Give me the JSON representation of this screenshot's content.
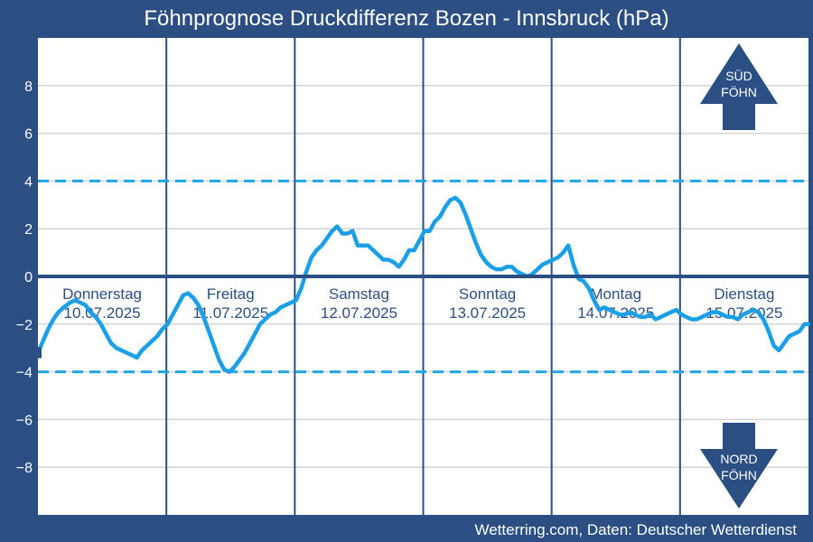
{
  "page": {
    "title": "Föhnprognose Druckdifferenz Bozen - Innsbruck (hPa)",
    "footer": "Wetterring.com, Daten: Deutscher Wetterdienst"
  },
  "chart_data": {
    "type": "line",
    "title": "Föhnprognose Druckdifferenz Bozen - Innsbruck (hPa)",
    "xlabel": "",
    "ylabel": "",
    "ylim": [
      -10,
      10
    ],
    "xlim": [
      0,
      6
    ],
    "x_unit": "days since 10.07.2025 00:00",
    "yticks": [
      8,
      6,
      4,
      2,
      0,
      -2,
      -4,
      -6,
      -8
    ],
    "grid": true,
    "colors": {
      "plot_background": "#ffffff",
      "frame": "#2b4f82",
      "line": "#1b9fe6",
      "threshold": "#1fa6e8",
      "zero_line": "#2b4f82",
      "day_divider": "#2b4f82",
      "arrow": "#2b4f82",
      "grid": "#d4d4d4"
    },
    "thresholds": [
      4,
      -4
    ],
    "days": [
      {
        "weekday": "Donnerstag",
        "date": "10.07.2025"
      },
      {
        "weekday": "Freitag",
        "date": "11.07.2025"
      },
      {
        "weekday": "Samstag",
        "date": "12.07.2025"
      },
      {
        "weekday": "Sonntag",
        "date": "13.07.2025"
      },
      {
        "weekday": "Montag",
        "date": "14.07.2025"
      },
      {
        "weekday": "Dienstag",
        "date": "15.07.2025"
      }
    ],
    "annotations": {
      "south": [
        "SÜD",
        "FÖHN"
      ],
      "north": [
        "NORD",
        "FÖHN"
      ]
    },
    "series": [
      {
        "x": [
          0,
          0.04,
          0.08,
          0.12,
          0.16,
          0.2,
          0.25,
          0.29,
          0.33,
          0.37,
          0.41,
          0.45,
          0.49,
          0.53,
          0.57,
          0.61,
          0.65,
          0.69,
          0.73,
          0.77,
          0.81,
          0.85,
          0.89,
          0.93,
          0.97,
          1.01,
          1.05,
          1.09,
          1.13,
          1.17,
          1.21,
          1.25,
          1.29,
          1.33,
          1.37,
          1.41,
          1.45,
          1.49,
          1.53,
          1.57,
          1.61,
          1.65,
          1.69,
          1.73,
          1.77,
          1.81,
          1.85,
          1.89,
          1.93,
          1.97,
          2.01,
          2.05,
          2.09,
          2.13,
          2.17,
          2.21,
          2.25,
          2.29,
          2.33,
          2.37,
          2.41,
          2.45,
          2.49,
          2.53,
          2.57,
          2.61,
          2.65,
          2.69,
          2.73,
          2.77,
          2.81,
          2.85,
          2.89,
          2.93,
          2.97,
          3.01,
          3.05,
          3.09,
          3.13,
          3.17,
          3.21,
          3.25,
          3.29,
          3.33,
          3.37,
          3.41,
          3.45,
          3.49,
          3.53,
          3.57,
          3.61,
          3.65,
          3.69,
          3.73,
          3.77,
          3.81,
          3.85,
          3.89,
          3.93,
          3.97,
          4.01,
          4.05,
          4.09,
          4.13,
          4.17,
          4.21,
          4.25,
          4.29,
          4.33,
          4.37,
          4.41,
          4.45,
          4.49,
          4.53,
          4.57,
          4.61,
          4.65,
          4.69,
          4.73,
          4.77,
          4.81,
          4.85,
          4.89,
          4.93,
          4.97,
          5.01,
          5.05,
          5.09,
          5.13,
          5.17,
          5.21,
          5.25,
          5.29,
          5.33,
          5.37,
          5.41,
          5.45,
          5.49,
          5.53,
          5.57,
          5.61,
          5.65,
          5.69,
          5.73,
          5.77,
          5.81,
          5.85,
          5.89,
          5.93,
          5.97,
          6.0
        ],
        "values": [
          -3.2,
          -2.7,
          -2.2,
          -1.8,
          -1.5,
          -1.3,
          -1.1,
          -1.0,
          -1.1,
          -1.2,
          -1.5,
          -1.7,
          -2.0,
          -2.4,
          -2.8,
          -3.0,
          -3.1,
          -3.2,
          -3.3,
          -3.4,
          -3.1,
          -2.9,
          -2.7,
          -2.5,
          -2.2,
          -2.0,
          -1.6,
          -1.2,
          -0.8,
          -0.7,
          -0.9,
          -1.2,
          -1.7,
          -2.3,
          -2.9,
          -3.5,
          -3.9,
          -4.0,
          -3.8,
          -3.5,
          -3.2,
          -2.8,
          -2.4,
          -2.0,
          -1.8,
          -1.6,
          -1.5,
          -1.3,
          -1.2,
          -1.1,
          -1.0,
          -0.5,
          0.2,
          0.8,
          1.1,
          1.3,
          1.6,
          1.9,
          2.1,
          1.8,
          1.8,
          1.9,
          1.3,
          1.3,
          1.3,
          1.1,
          0.9,
          0.7,
          0.7,
          0.6,
          0.4,
          0.7,
          1.1,
          1.1,
          1.5,
          1.9,
          1.9,
          2.3,
          2.5,
          2.9,
          3.2,
          3.3,
          3.1,
          2.6,
          2.0,
          1.4,
          0.9,
          0.6,
          0.4,
          0.3,
          0.3,
          0.4,
          0.4,
          0.2,
          0.1,
          0.0,
          0.1,
          0.3,
          0.5,
          0.6,
          0.7,
          0.8,
          1.0,
          1.3,
          0.5,
          -0.1,
          -0.2,
          -0.5,
          -1.0,
          -1.4,
          -1.3,
          -1.4,
          -1.5,
          -1.6,
          -1.6,
          -1.5,
          -1.6,
          -1.7,
          -1.7,
          -1.6,
          -1.8,
          -1.7,
          -1.6,
          -1.5,
          -1.4,
          -1.6,
          -1.7,
          -1.8,
          -1.8,
          -1.7,
          -1.6,
          -1.5,
          -1.5,
          -1.6,
          -1.7,
          -1.7,
          -1.8,
          -1.6,
          -1.5,
          -1.4,
          -1.5,
          -1.8,
          -2.3,
          -2.9,
          -3.1,
          -2.8,
          -2.5,
          -2.4,
          -2.3,
          -2.0,
          -2.0
        ]
      }
    ]
  }
}
